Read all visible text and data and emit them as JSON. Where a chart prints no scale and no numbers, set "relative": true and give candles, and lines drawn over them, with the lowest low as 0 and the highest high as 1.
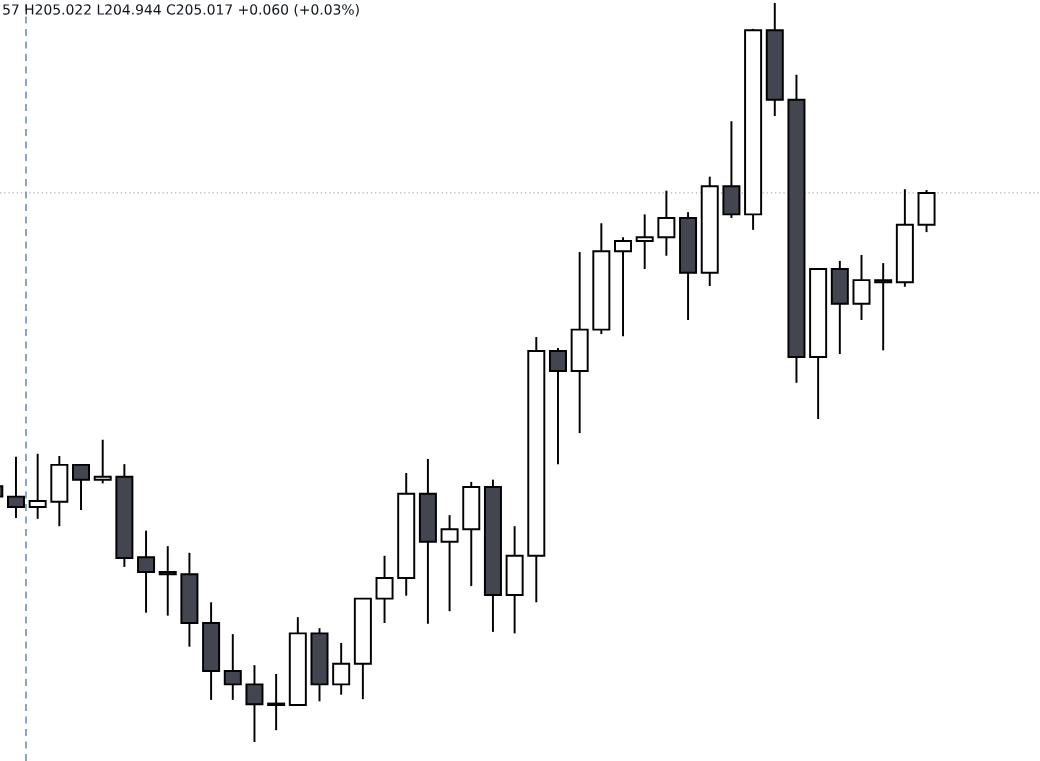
{
  "chart_data": {
    "type": "candlestick",
    "relative": true,
    "categories": [
      null,
      null,
      null,
      null,
      null,
      null,
      null,
      null,
      null,
      null,
      null,
      null,
      null,
      null,
      null,
      null,
      null,
      null,
      null,
      null,
      null,
      null,
      null,
      null,
      null,
      null,
      null,
      null,
      null,
      null,
      null,
      null,
      null,
      null,
      null,
      null,
      null,
      null,
      null,
      null,
      null,
      null,
      null,
      null
    ],
    "ohlc": [
      [
        0.346,
        0.346,
        0.332,
        0.332
      ],
      [
        0.332,
        0.386,
        0.303,
        0.318
      ],
      [
        0.318,
        0.39,
        0.302,
        0.326
      ],
      [
        0.325,
        0.387,
        0.292,
        0.375
      ],
      [
        0.375,
        0.376,
        0.314,
        0.355
      ],
      [
        0.355,
        0.409,
        0.35,
        0.359
      ],
      [
        0.359,
        0.376,
        0.237,
        0.249
      ],
      [
        0.25,
        0.286,
        0.175,
        0.23
      ],
      [
        0.23,
        0.265,
        0.171,
        0.227
      ],
      [
        0.227,
        0.256,
        0.129,
        0.161
      ],
      [
        0.161,
        0.189,
        0.057,
        0.096
      ],
      [
        0.096,
        0.146,
        0.057,
        0.078
      ],
      [
        0.078,
        0.104,
        0.0,
        0.051
      ],
      [
        0.051,
        0.092,
        0.016,
        0.05
      ],
      [
        0.05,
        0.169,
        0.05,
        0.147
      ],
      [
        0.147,
        0.154,
        0.055,
        0.078
      ],
      [
        0.078,
        0.134,
        0.064,
        0.106
      ],
      [
        0.106,
        0.194,
        0.058,
        0.194
      ],
      [
        0.194,
        0.252,
        0.161,
        0.222
      ],
      [
        0.222,
        0.364,
        0.198,
        0.336
      ],
      [
        0.336,
        0.383,
        0.16,
        0.271
      ],
      [
        0.271,
        0.307,
        0.177,
        0.288
      ],
      [
        0.288,
        0.352,
        0.211,
        0.345
      ],
      [
        0.345,
        0.355,
        0.149,
        0.199
      ],
      [
        0.199,
        0.292,
        0.147,
        0.252
      ],
      [
        0.252,
        0.548,
        0.189,
        0.529
      ],
      [
        0.529,
        0.533,
        0.376,
        0.502
      ],
      [
        0.502,
        0.663,
        0.418,
        0.558
      ],
      [
        0.558,
        0.702,
        0.552,
        0.664
      ],
      [
        0.664,
        0.683,
        0.549,
        0.678
      ],
      [
        0.678,
        0.714,
        0.64,
        0.683
      ],
      [
        0.683,
        0.746,
        0.658,
        0.709
      ],
      [
        0.709,
        0.717,
        0.571,
        0.635
      ],
      [
        0.635,
        0.765,
        0.617,
        0.752
      ],
      [
        0.752,
        0.84,
        0.709,
        0.714
      ],
      [
        0.714,
        0.965,
        0.693,
        0.963
      ],
      [
        0.963,
        1.0,
        0.847,
        0.869
      ],
      [
        0.869,
        0.903,
        0.486,
        0.521
      ],
      [
        0.521,
        0.64,
        0.437,
        0.64
      ],
      [
        0.64,
        0.651,
        0.525,
        0.593
      ],
      [
        0.593,
        0.659,
        0.571,
        0.625
      ],
      [
        0.625,
        0.648,
        0.53,
        0.622
      ],
      [
        0.622,
        0.748,
        0.616,
        0.7
      ],
      [
        0.7,
        0.747,
        0.69,
        0.743
      ]
    ],
    "colors": [
      "#434651",
      "#434651",
      "#ffffff",
      "#ffffff",
      "#434651",
      "#ffffff",
      "#434651",
      "#434651",
      "#434651",
      "#434651",
      "#434651",
      "#434651",
      "#434651",
      "#434651",
      "#ffffff",
      "#434651",
      "#ffffff",
      "#ffffff",
      "#ffffff",
      "#ffffff",
      "#434651",
      "#ffffff",
      "#ffffff",
      "#434651",
      "#ffffff",
      "#ffffff",
      "#434651",
      "#ffffff",
      "#ffffff",
      "#ffffff",
      "#ffffff",
      "#ffffff",
      "#434651",
      "#ffffff",
      "#434651",
      "#ffffff",
      "#434651",
      "#434651",
      "#ffffff",
      "#434651",
      "#ffffff",
      "#434651",
      "#ffffff",
      "#ffffff"
    ],
    "ref_lines": [
      {
        "axis": "y",
        "value": 0.743,
        "color": "#b2b5be",
        "line_style": "dotted"
      }
    ],
    "annotations": [
      "57 H205.022 L204.944 C205.017 +0.060 (+0.03%)"
    ],
    "grid": false
  }
}
